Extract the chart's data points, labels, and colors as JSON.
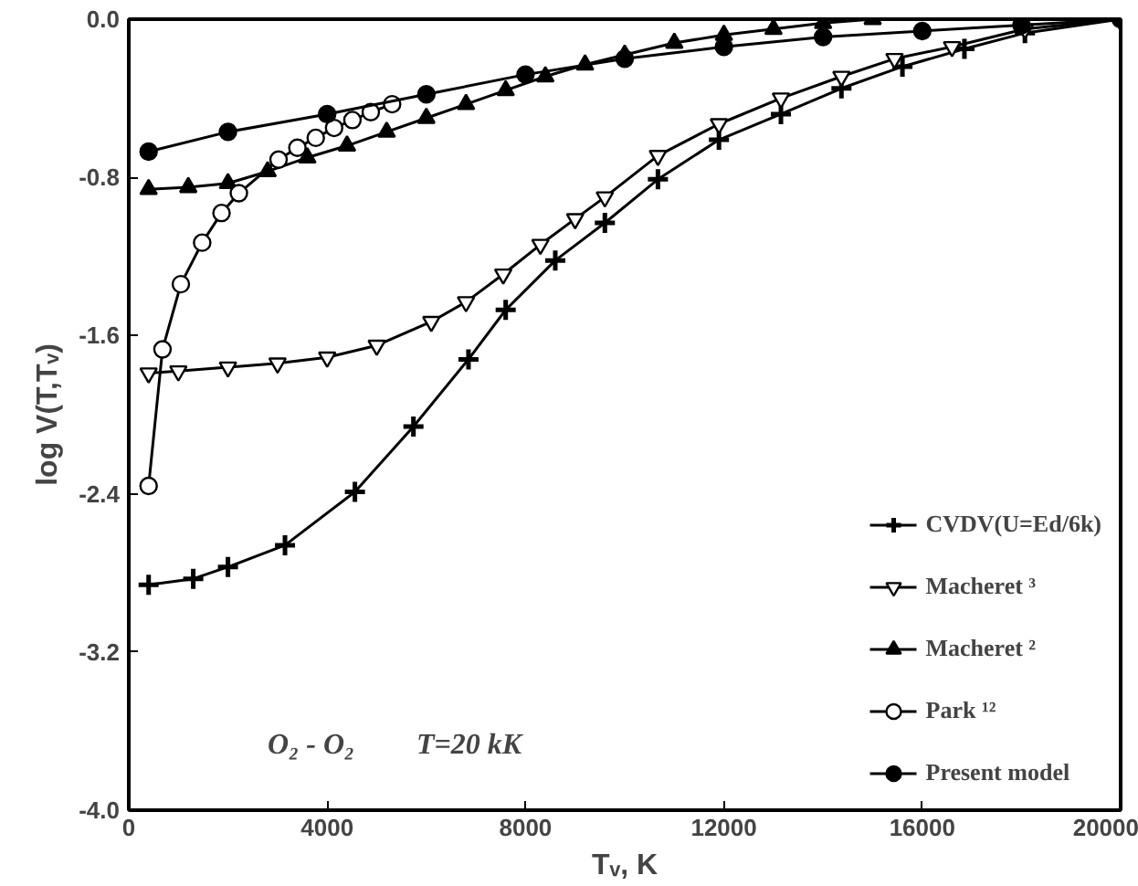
{
  "chart_data": {
    "type": "line",
    "xlabel": "Tᵥ, K",
    "ylabel": "log V(T,Tᵥ)",
    "xlim": [
      0,
      20000
    ],
    "ylim": [
      -4.0,
      0.0
    ],
    "xticks": [
      0,
      4000,
      8000,
      12000,
      16000,
      20000
    ],
    "yticks": [
      {
        "value": -4.0,
        "label": "-4.0"
      },
      {
        "value": -3.2,
        "label": "-3.2"
      },
      {
        "value": -2.4,
        "label": "-2.4"
      },
      {
        "value": -1.6,
        "label": "-1.6"
      },
      {
        "value": -0.8,
        "label": "-0.8"
      },
      {
        "value": 0.0,
        "label": "0.0"
      }
    ],
    "grid": false,
    "legend": "bottom right",
    "line_style": "solid",
    "annotations": [
      "O₂ - O₂",
      "T=20 kK"
    ],
    "series": [
      {
        "name": "CVDV(U=Ed/6k)",
        "color": "#000000",
        "marker": "cross",
        "x": [
          400,
          1300,
          2000,
          3150,
          4560,
          5740,
          6850,
          7600,
          8600,
          9600,
          10670,
          11900,
          13150,
          14370,
          15600,
          16850,
          18070,
          20000
        ],
        "values": [
          -2.86,
          -2.83,
          -2.77,
          -2.66,
          -2.39,
          -2.06,
          -1.72,
          -1.47,
          -1.22,
          -1.03,
          -0.81,
          -0.61,
          -0.48,
          -0.35,
          -0.24,
          -0.15,
          -0.07,
          0.0
        ]
      },
      {
        "name": "Macheret ³",
        "color": "#000000",
        "marker": "triangle_down_open",
        "x": [
          400,
          1000,
          2000,
          3000,
          4000,
          5000,
          6100,
          6800,
          7550,
          8300,
          9000,
          9600,
          10670,
          11900,
          13150,
          14370,
          15440,
          16600,
          18070,
          20000
        ],
        "values": [
          -1.79,
          -1.78,
          -1.76,
          -1.74,
          -1.71,
          -1.65,
          -1.53,
          -1.43,
          -1.29,
          -1.14,
          -1.01,
          -0.9,
          -0.69,
          -0.53,
          -0.4,
          -0.29,
          -0.2,
          -0.14,
          -0.05,
          0.0
        ]
      },
      {
        "name": "Macheret ²",
        "color": "#000000",
        "marker": "triangle",
        "x": [
          400,
          1200,
          2000,
          2800,
          3600,
          4400,
          5200,
          6000,
          6800,
          7600,
          8400,
          9200,
          10000,
          11000,
          12000,
          13000,
          14000,
          15000
        ],
        "values": [
          -0.86,
          -0.85,
          -0.83,
          -0.77,
          -0.7,
          -0.64,
          -0.57,
          -0.5,
          -0.43,
          -0.36,
          -0.29,
          -0.23,
          -0.18,
          -0.12,
          -0.08,
          -0.05,
          -0.02,
          0.0
        ]
      },
      {
        "name": "Park ¹²",
        "color": "#000000",
        "marker": "circle_open",
        "x": [
          400,
          680,
          1050,
          1480,
          1870,
          2220,
          3020,
          3400,
          3770,
          4140,
          4510,
          4880,
          5310
        ],
        "values": [
          -2.36,
          -1.67,
          -1.34,
          -1.13,
          -0.98,
          -0.88,
          -0.71,
          -0.65,
          -0.6,
          -0.55,
          -0.51,
          -0.47,
          -0.43
        ]
      },
      {
        "name": "Present model",
        "color": "#000000",
        "marker": "circle",
        "x": [
          400,
          2000,
          4000,
          6000,
          8000,
          10000,
          12000,
          14000,
          16000,
          18000,
          20000
        ],
        "values": [
          -0.67,
          -0.57,
          -0.48,
          -0.38,
          -0.28,
          -0.2,
          -0.14,
          -0.09,
          -0.06,
          -0.03,
          0.0
        ]
      }
    ]
  }
}
